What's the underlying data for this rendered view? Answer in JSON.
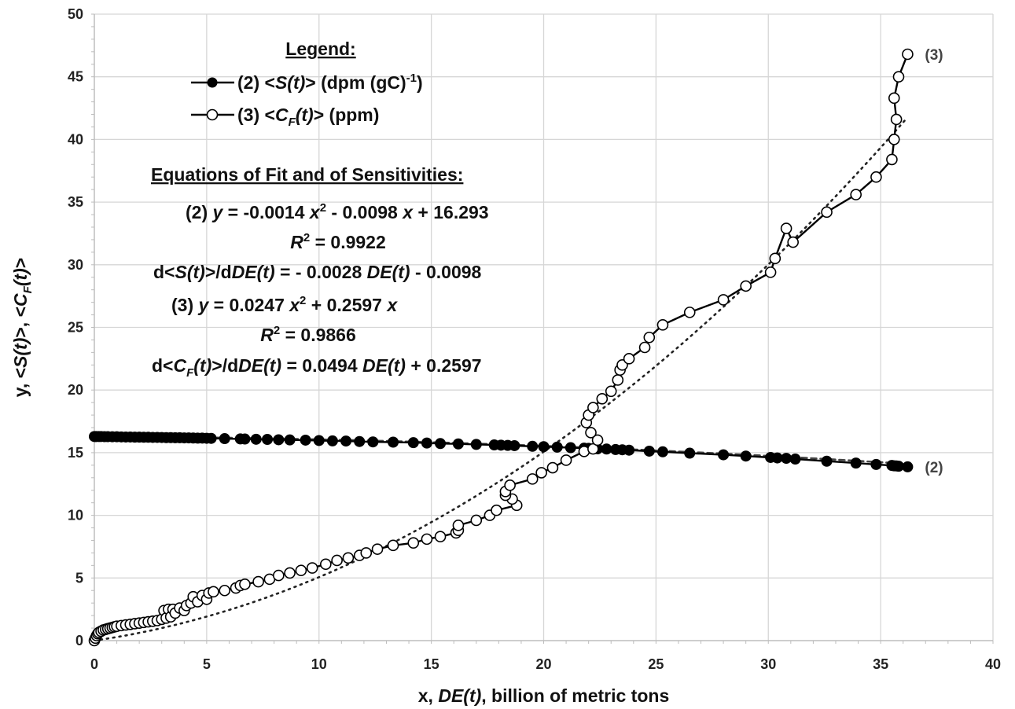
{
  "chart_data": {
    "type": "scatter",
    "xlabel_parts": [
      [
        "x, ",
        false
      ],
      [
        "DE(t)",
        true
      ],
      [
        ", billion of metric tons",
        false
      ]
    ],
    "ylabel_parts": [
      [
        "y, <",
        false
      ],
      [
        "S(t)",
        true
      ],
      [
        ">, <",
        false
      ],
      [
        "C",
        true
      ],
      [
        "F",
        true,
        "sub"
      ],
      [
        "(t)",
        true
      ],
      [
        ">",
        false
      ]
    ],
    "xlim": [
      0,
      40
    ],
    "ylim": [
      0,
      50
    ],
    "xticks": [
      "0",
      "5",
      "10",
      "15",
      "20",
      "25",
      "30",
      "35",
      "40"
    ],
    "yticks": [
      "0",
      "5",
      "10",
      "15",
      "20",
      "25",
      "30",
      "35",
      "40",
      "45",
      "50"
    ],
    "grid": true,
    "legend": {
      "title": "Legend:",
      "position": "top-left",
      "entries": [
        [
          [
            "(2) <",
            false
          ],
          [
            "S(t)",
            true
          ],
          [
            "> (dpm (gC)",
            false
          ],
          [
            "-1",
            false,
            "sup"
          ],
          [
            ")",
            false
          ]
        ],
        [
          [
            "(3) <",
            false
          ],
          [
            "C",
            true
          ],
          [
            "F",
            true,
            "sub"
          ],
          [
            "(t)",
            true
          ],
          [
            "> (ppm)",
            false
          ]
        ]
      ]
    },
    "annotations": [
      {
        "align": "start",
        "parts": [
          [
            "Equations of Fit and of Sensitivities:",
            false,
            "u"
          ]
        ]
      },
      {
        "align": "start",
        "parts": [
          [
            "(2) ",
            false
          ],
          [
            "y",
            true
          ],
          [
            " = -0.0014 ",
            false
          ],
          [
            "x",
            true
          ],
          [
            "2",
            false,
            "sup"
          ],
          [
            " - 0.0098 ",
            false
          ],
          [
            "x",
            true
          ],
          [
            " + 16.293",
            false
          ]
        ]
      },
      {
        "align": "middle",
        "parts": [
          [
            "R",
            true
          ],
          [
            "2",
            false,
            "sup"
          ],
          [
            " = 0.9922",
            false
          ]
        ]
      },
      {
        "align": "start",
        "parts": [
          [
            "d<",
            false
          ],
          [
            "S(t)",
            true
          ],
          [
            ">/d",
            false
          ],
          [
            "DE(t)",
            true
          ],
          [
            " = - 0.0028 ",
            false
          ],
          [
            "DE(t)",
            true
          ],
          [
            " - 0.0098",
            false
          ]
        ]
      },
      {
        "align": "start",
        "parts": [
          [
            "(3) ",
            false
          ],
          [
            "y",
            true
          ],
          [
            " = 0.0247 ",
            false
          ],
          [
            "x",
            true
          ],
          [
            "2",
            false,
            "sup"
          ],
          [
            " + 0.2597 ",
            false
          ],
          [
            "x",
            true
          ]
        ]
      },
      {
        "align": "middle",
        "parts": [
          [
            "R",
            true
          ],
          [
            "2",
            false,
            "sup"
          ],
          [
            " = 0.9866",
            false
          ]
        ]
      },
      {
        "align": "start",
        "parts": [
          [
            "d<",
            false
          ],
          [
            "C",
            true
          ],
          [
            "F",
            true,
            "sub"
          ],
          [
            "(t)",
            true
          ],
          [
            ">/d",
            false
          ],
          [
            "DE(t)",
            true
          ],
          [
            " = 0.0494 ",
            false
          ],
          [
            "DE(t)",
            true
          ],
          [
            " + 0.2597",
            false
          ]
        ]
      }
    ],
    "series": [
      {
        "name": "(2) <S(t)> (dpm (gC)-1)",
        "end_label": "(2)",
        "marker": "filled-circle",
        "color": "#000000",
        "points": [
          [
            0,
            16.29
          ],
          [
            0.05,
            16.29
          ],
          [
            0.1,
            16.29
          ],
          [
            0.2,
            16.29
          ],
          [
            0.3,
            16.29
          ],
          [
            0.45,
            16.28
          ],
          [
            0.6,
            16.28
          ],
          [
            0.8,
            16.27
          ],
          [
            1.0,
            16.27
          ],
          [
            1.2,
            16.26
          ],
          [
            1.4,
            16.25
          ],
          [
            1.6,
            16.25
          ],
          [
            1.8,
            16.24
          ],
          [
            2.0,
            16.24
          ],
          [
            2.2,
            16.23
          ],
          [
            2.4,
            16.23
          ],
          [
            2.6,
            16.22
          ],
          [
            2.8,
            16.22
          ],
          [
            3.0,
            16.21
          ],
          [
            3.2,
            16.2
          ],
          [
            3.4,
            16.2
          ],
          [
            3.6,
            16.19
          ],
          [
            3.8,
            16.19
          ],
          [
            4.0,
            16.18
          ],
          [
            4.2,
            16.18
          ],
          [
            4.4,
            16.17
          ],
          [
            4.6,
            16.16
          ],
          [
            4.8,
            16.16
          ],
          [
            5.0,
            16.15
          ],
          [
            5.2,
            16.14
          ],
          [
            5.8,
            16.12
          ],
          [
            6.5,
            16.1
          ],
          [
            6.7,
            16.09
          ],
          [
            7.2,
            16.07
          ],
          [
            7.7,
            16.06
          ],
          [
            8.2,
            16.03
          ],
          [
            8.7,
            16.02
          ],
          [
            9.4,
            16.0
          ],
          [
            10.0,
            15.97
          ],
          [
            10.6,
            15.94
          ],
          [
            11.2,
            15.93
          ],
          [
            11.8,
            15.89
          ],
          [
            12.4,
            15.86
          ],
          [
            13.3,
            15.84
          ],
          [
            14.2,
            15.8
          ],
          [
            14.8,
            15.77
          ],
          [
            15.4,
            15.73
          ],
          [
            16.2,
            15.7
          ],
          [
            17.0,
            15.66
          ],
          [
            17.8,
            15.62
          ],
          [
            18.1,
            15.6
          ],
          [
            18.4,
            15.58
          ],
          [
            18.7,
            15.56
          ],
          [
            19.5,
            15.51
          ],
          [
            20.0,
            15.48
          ],
          [
            20.6,
            15.44
          ],
          [
            21.2,
            15.4
          ],
          [
            21.8,
            15.36
          ],
          [
            22.0,
            15.35
          ],
          [
            22.4,
            15.31
          ],
          [
            22.8,
            15.29
          ],
          [
            23.2,
            15.25
          ],
          [
            23.5,
            15.23
          ],
          [
            23.8,
            15.2
          ],
          [
            24.7,
            15.12
          ],
          [
            25.3,
            15.07
          ],
          [
            26.5,
            14.96
          ],
          [
            28.0,
            14.83
          ],
          [
            29.0,
            14.73
          ],
          [
            30.1,
            14.62
          ],
          [
            30.4,
            14.58
          ],
          [
            30.8,
            14.55
          ],
          [
            31.2,
            14.49
          ],
          [
            32.6,
            14.32
          ],
          [
            33.9,
            14.17
          ],
          [
            34.8,
            14.06
          ],
          [
            35.5,
            13.98
          ],
          [
            35.6,
            13.95
          ],
          [
            35.7,
            13.94
          ],
          [
            35.8,
            13.92
          ],
          [
            36.2,
            13.87
          ]
        ]
      },
      {
        "name": "(3) <CF(t)> (ppm)",
        "end_label": "(3)",
        "marker": "open-circle",
        "color": "#000000",
        "points": [
          [
            0,
            0
          ],
          [
            0.05,
            0.2
          ],
          [
            0.1,
            0.4
          ],
          [
            0.15,
            0.55
          ],
          [
            0.2,
            0.65
          ],
          [
            0.3,
            0.75
          ],
          [
            0.4,
            0.85
          ],
          [
            0.5,
            0.9
          ],
          [
            0.6,
            0.95
          ],
          [
            0.7,
            1.0
          ],
          [
            0.8,
            1.05
          ],
          [
            0.9,
            1.1
          ],
          [
            1.0,
            1.15
          ],
          [
            1.2,
            1.2
          ],
          [
            1.4,
            1.25
          ],
          [
            1.6,
            1.3
          ],
          [
            1.8,
            1.35
          ],
          [
            2.0,
            1.4
          ],
          [
            2.2,
            1.45
          ],
          [
            2.4,
            1.5
          ],
          [
            2.6,
            1.55
          ],
          [
            2.8,
            1.6
          ],
          [
            3.0,
            1.7
          ],
          [
            3.1,
            2.4
          ],
          [
            3.2,
            1.8
          ],
          [
            3.3,
            2.5
          ],
          [
            3.4,
            1.9
          ],
          [
            3.5,
            2.5
          ],
          [
            3.6,
            2.2
          ],
          [
            3.8,
            2.6
          ],
          [
            4.0,
            2.4
          ],
          [
            4.1,
            2.8
          ],
          [
            4.3,
            3.0
          ],
          [
            4.4,
            3.5
          ],
          [
            4.6,
            3.1
          ],
          [
            4.8,
            3.6
          ],
          [
            5.0,
            3.3
          ],
          [
            5.1,
            3.8
          ],
          [
            5.3,
            3.9
          ],
          [
            5.8,
            4.0
          ],
          [
            6.3,
            4.2
          ],
          [
            6.5,
            4.4
          ],
          [
            6.7,
            4.5
          ],
          [
            7.3,
            4.7
          ],
          [
            7.8,
            4.9
          ],
          [
            8.2,
            5.2
          ],
          [
            8.7,
            5.4
          ],
          [
            9.2,
            5.6
          ],
          [
            9.7,
            5.8
          ],
          [
            10.3,
            6.1
          ],
          [
            10.8,
            6.4
          ],
          [
            11.3,
            6.6
          ],
          [
            11.8,
            6.8
          ],
          [
            12.1,
            7.0
          ],
          [
            12.6,
            7.3
          ],
          [
            13.3,
            7.6
          ],
          [
            14.2,
            7.8
          ],
          [
            14.8,
            8.1
          ],
          [
            15.4,
            8.3
          ],
          [
            16.1,
            8.6
          ],
          [
            16.2,
            8.8
          ],
          [
            16.2,
            9.2
          ],
          [
            17.0,
            9.6
          ],
          [
            17.6,
            10.0
          ],
          [
            17.9,
            10.4
          ],
          [
            18.8,
            10.8
          ],
          [
            18.6,
            11.3
          ],
          [
            18.3,
            11.6
          ],
          [
            18.3,
            11.9
          ],
          [
            18.5,
            12.4
          ],
          [
            19.5,
            12.9
          ],
          [
            19.9,
            13.4
          ],
          [
            20.4,
            13.8
          ],
          [
            21.0,
            14.4
          ],
          [
            21.8,
            15.1
          ],
          [
            22.2,
            15.3
          ],
          [
            22.4,
            16.0
          ],
          [
            22.1,
            16.6
          ],
          [
            21.9,
            17.4
          ],
          [
            22.0,
            18.0
          ],
          [
            22.2,
            18.6
          ],
          [
            22.6,
            19.3
          ],
          [
            23.0,
            19.9
          ],
          [
            23.3,
            20.8
          ],
          [
            23.4,
            21.6
          ],
          [
            23.5,
            22.0
          ],
          [
            23.8,
            22.5
          ],
          [
            24.5,
            23.4
          ],
          [
            24.7,
            24.2
          ],
          [
            25.3,
            25.2
          ],
          [
            26.5,
            26.2
          ],
          [
            28.0,
            27.2
          ],
          [
            29.0,
            28.3
          ],
          [
            30.1,
            29.4
          ],
          [
            30.3,
            30.5
          ],
          [
            30.8,
            32.9
          ],
          [
            31.1,
            31.8
          ],
          [
            32.6,
            34.2
          ],
          [
            33.9,
            35.6
          ],
          [
            34.8,
            37.0
          ],
          [
            35.5,
            38.4
          ],
          [
            35.6,
            40.0
          ],
          [
            35.7,
            41.6
          ],
          [
            35.6,
            43.3
          ],
          [
            35.8,
            45.0
          ],
          [
            36.2,
            46.8
          ]
        ]
      }
    ],
    "fits": [
      {
        "series": "(2)",
        "a": -0.0014,
        "b": -0.0098,
        "c": 16.293,
        "x_range": [
          0,
          36.2
        ],
        "style": "dashed",
        "color": "#444444"
      },
      {
        "series": "(3)",
        "a": 0.0247,
        "b": 0.2597,
        "c": 0,
        "x_range": [
          0,
          36.2
        ],
        "style": "dotted",
        "color": "#222222"
      }
    ]
  }
}
